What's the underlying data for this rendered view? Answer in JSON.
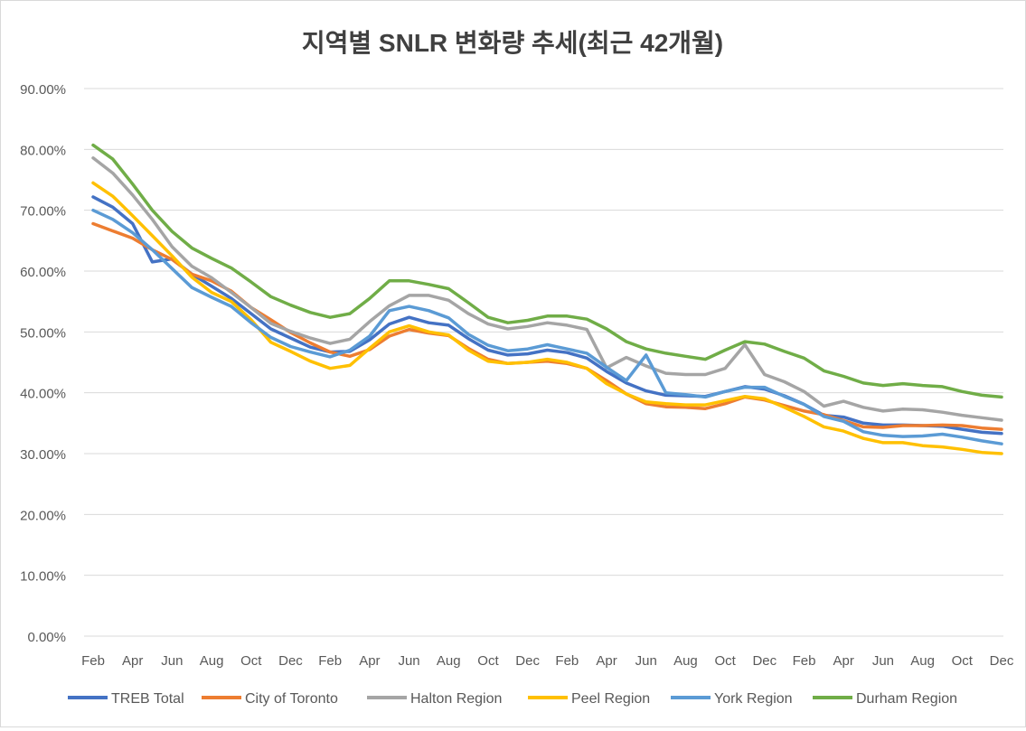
{
  "chart_data": {
    "type": "line",
    "title": "지역별 SNLR 변화량 추세(최근 42개월)",
    "xlabel": "",
    "ylabel": "",
    "ylim": [
      0,
      90
    ],
    "y_ticks": [
      "0.00%",
      "10.00%",
      "20.00%",
      "30.00%",
      "40.00%",
      "50.00%",
      "60.00%",
      "70.00%",
      "80.00%",
      "90.00%"
    ],
    "x_tick_labels": [
      "Feb",
      "Apr",
      "Jun",
      "Aug",
      "Oct",
      "Dec",
      "Feb",
      "Apr",
      "Jun",
      "Aug",
      "Oct",
      "Dec",
      "Feb",
      "Apr",
      "Jun",
      "Aug",
      "Oct",
      "Dec",
      "Feb",
      "Apr",
      "Jun",
      "Aug",
      "Oct",
      "Dec"
    ],
    "grid": true,
    "legend_position": "bottom",
    "series": [
      {
        "name": "TREB Total",
        "color": "#4472C4",
        "values": [
          72.2,
          70.5,
          67.8,
          61.5,
          62.0,
          59.5,
          57.5,
          55.5,
          53.0,
          50.5,
          49.0,
          47.5,
          46.7,
          46.8,
          48.7,
          51.3,
          52.4,
          51.5,
          51.1,
          48.9,
          47.0,
          46.2,
          46.4,
          47.0,
          46.6,
          45.7,
          43.5,
          41.6,
          40.3,
          39.6,
          39.5,
          39.4,
          40.2,
          41.0,
          40.6,
          39.5,
          38.1,
          36.3,
          36.0,
          35.0,
          34.7,
          34.7,
          34.6,
          34.5,
          34.0,
          33.5,
          33.3
        ]
      },
      {
        "name": "City of Toronto",
        "color": "#ED7D31",
        "values": [
          67.8,
          66.6,
          65.4,
          63.5,
          61.9,
          59.5,
          58.4,
          56.7,
          54.0,
          52.0,
          49.9,
          48.2,
          46.7,
          46.0,
          47.1,
          49.3,
          50.4,
          49.8,
          49.4,
          47.3,
          45.5,
          44.8,
          45.0,
          45.2,
          44.8,
          44.0,
          42.0,
          39.8,
          38.2,
          37.7,
          37.6,
          37.4,
          38.2,
          39.3,
          38.8,
          37.9,
          37.0,
          36.4,
          35.4,
          34.4,
          34.3,
          34.6,
          34.6,
          34.7,
          34.6,
          34.2,
          34.0
        ]
      },
      {
        "name": "Halton Region",
        "color": "#A5A5A5",
        "values": [
          78.6,
          76.1,
          72.5,
          68.5,
          64.0,
          60.8,
          58.9,
          56.5,
          54.0,
          51.4,
          50.1,
          49.0,
          48.1,
          48.8,
          51.7,
          54.3,
          56.0,
          56.0,
          55.2,
          53.0,
          51.3,
          50.5,
          50.9,
          51.5,
          51.1,
          50.4,
          44.1,
          45.8,
          44.4,
          43.2,
          43.0,
          43.0,
          44.0,
          47.9,
          43.0,
          41.8,
          40.2,
          37.8,
          38.6,
          37.6,
          37.0,
          37.3,
          37.2,
          36.8,
          36.3,
          35.9,
          35.5
        ]
      },
      {
        "name": "Peel Region",
        "color": "#FFC000",
        "values": [
          74.5,
          72.3,
          69.1,
          65.8,
          62.5,
          59.0,
          56.5,
          55.0,
          52.0,
          48.3,
          46.8,
          45.2,
          44.0,
          44.5,
          47.3,
          50.0,
          51.0,
          50.0,
          49.5,
          47.0,
          45.2,
          44.8,
          45.0,
          45.5,
          45.0,
          44.0,
          41.5,
          39.8,
          38.5,
          38.2,
          38.0,
          38.0,
          38.7,
          39.4,
          39.0,
          37.6,
          36.1,
          34.4,
          33.7,
          32.5,
          31.8,
          31.8,
          31.3,
          31.1,
          30.7,
          30.2,
          30.0
        ]
      },
      {
        "name": "York Region",
        "color": "#5B9BD5",
        "values": [
          70.0,
          68.5,
          66.3,
          63.5,
          60.4,
          57.3,
          55.7,
          54.2,
          51.5,
          49.1,
          47.6,
          46.7,
          45.9,
          47.0,
          49.3,
          53.5,
          54.2,
          53.5,
          52.3,
          49.6,
          47.8,
          46.9,
          47.2,
          47.9,
          47.2,
          46.5,
          44.2,
          42.0,
          46.2,
          40.0,
          39.7,
          39.3,
          40.2,
          40.9,
          40.9,
          39.4,
          38.1,
          36.1,
          35.3,
          33.6,
          33.0,
          32.8,
          32.9,
          33.2,
          32.7,
          32.1,
          31.6
        ]
      },
      {
        "name": "Durham Region",
        "color": "#70AD47",
        "values": [
          80.7,
          78.4,
          74.3,
          70.0,
          66.5,
          63.8,
          62.1,
          60.5,
          58.2,
          55.8,
          54.4,
          53.2,
          52.4,
          53.0,
          55.5,
          58.4,
          58.4,
          57.8,
          57.1,
          54.8,
          52.4,
          51.5,
          51.9,
          52.6,
          52.6,
          52.1,
          50.5,
          48.4,
          47.2,
          46.5,
          46.0,
          45.5,
          47.0,
          48.4,
          48.0,
          46.8,
          45.7,
          43.6,
          42.7,
          41.6,
          41.2,
          41.5,
          41.2,
          41.0,
          40.2,
          39.6,
          39.3
        ]
      }
    ]
  }
}
